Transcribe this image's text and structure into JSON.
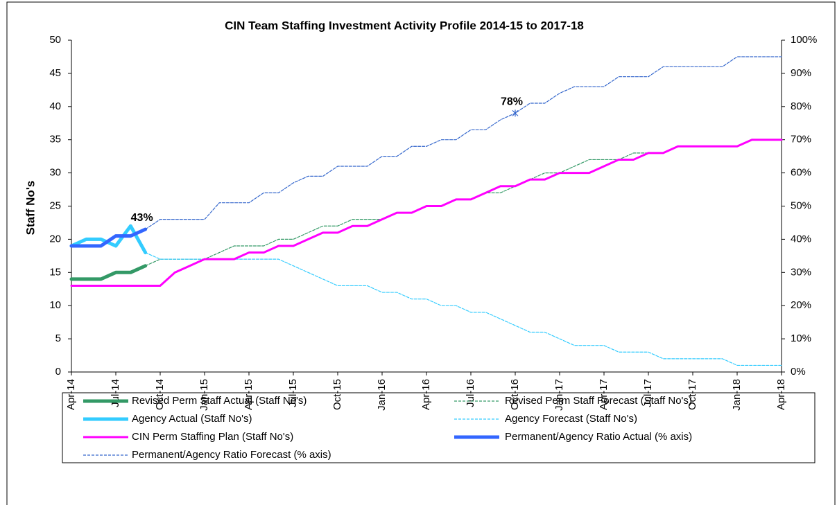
{
  "chart_data": {
    "type": "line",
    "title": "CIN Team Staffing Investment Activity Profile 2014-15 to 2017-18",
    "y_label": "Staff No's",
    "categories": [
      "Apr-14",
      null,
      null,
      "Jul-14",
      null,
      null,
      "Oct-14",
      null,
      null,
      "Jan-15",
      null,
      null,
      "Apr-15",
      null,
      null,
      "Jul-15",
      null,
      null,
      "Oct-15",
      null,
      null,
      "Jan-16",
      null,
      null,
      "Apr-16",
      null,
      null,
      "Jul-16",
      null,
      null,
      "Oct-16",
      null,
      null,
      "Jan-17",
      null,
      null,
      "Apr-17",
      null,
      null,
      "Jul-17",
      null,
      null,
      "Oct-17",
      null,
      null,
      "Jan-18",
      null,
      null,
      "Apr-18"
    ],
    "ylim": [
      0,
      50
    ],
    "yticks": [
      0,
      5,
      10,
      15,
      20,
      25,
      30,
      35,
      40,
      45,
      50
    ],
    "y2lim": [
      0,
      100
    ],
    "y2ticks": [
      {
        "value": 0,
        "label": "0%"
      },
      {
        "value": 10,
        "label": "10%"
      },
      {
        "value": 20,
        "label": "20%"
      },
      {
        "value": 30,
        "label": "30%"
      },
      {
        "value": 40,
        "label": "40%"
      },
      {
        "value": 50,
        "label": "50%"
      },
      {
        "value": 60,
        "label": "60%"
      },
      {
        "value": 70,
        "label": "70%"
      },
      {
        "value": 80,
        "label": "80%"
      },
      {
        "value": 90,
        "label": "90%"
      },
      {
        "value": 100,
        "label": "100%"
      }
    ],
    "grid": false,
    "legend": "bottom",
    "series": [
      {
        "name": "Revised Perm Staff Actual (Staff No's)",
        "color": "#339966",
        "line_style": "thick",
        "values": [
          14,
          14,
          14,
          15,
          15,
          16,
          null,
          null,
          null,
          null,
          null,
          null,
          null,
          null,
          null,
          null,
          null,
          null,
          null,
          null,
          null,
          null,
          null,
          null,
          null,
          null,
          null,
          null,
          null,
          null,
          null,
          null,
          null,
          null,
          null,
          null,
          null,
          null,
          null,
          null,
          null,
          null,
          null,
          null,
          null,
          null,
          null,
          null,
          null
        ]
      },
      {
        "name": "Revised Perm Staff Forecast (Staff No's)",
        "color": "#339966",
        "line_style": "dashed",
        "values": [
          null,
          null,
          null,
          null,
          null,
          16,
          17,
          17,
          17,
          17,
          18,
          19,
          19,
          19,
          20,
          20,
          21,
          22,
          22,
          23,
          23,
          23,
          24,
          24,
          25,
          25,
          26,
          26,
          27,
          27,
          28,
          29,
          30,
          30,
          31,
          32,
          32,
          32,
          33,
          33,
          33,
          34,
          34,
          34,
          34,
          34,
          35,
          35,
          35
        ]
      },
      {
        "name": "Agency Actual (Staff No's)",
        "color": "#33ccff",
        "line_style": "thick",
        "values": [
          19,
          20,
          20,
          19,
          22,
          18,
          null,
          null,
          null,
          null,
          null,
          null,
          null,
          null,
          null,
          null,
          null,
          null,
          null,
          null,
          null,
          null,
          null,
          null,
          null,
          null,
          null,
          null,
          null,
          null,
          null,
          null,
          null,
          null,
          null,
          null,
          null,
          null,
          null,
          null,
          null,
          null,
          null,
          null,
          null,
          null,
          null,
          null,
          null
        ]
      },
      {
        "name": "Agency Forecast (Staff No's)",
        "color": "#33ccff",
        "line_style": "dashed",
        "values": [
          null,
          null,
          null,
          null,
          null,
          18,
          17,
          17,
          17,
          17,
          17,
          17,
          17,
          17,
          17,
          16,
          15,
          14,
          13,
          13,
          13,
          12,
          12,
          11,
          11,
          10,
          10,
          9,
          9,
          8,
          7,
          6,
          6,
          5,
          4,
          4,
          4,
          3,
          3,
          3,
          2,
          2,
          2,
          2,
          2,
          1,
          1,
          1,
          1
        ]
      },
      {
        "name": "CIN Perm Staffing Plan (Staff No's)",
        "color": "#ff00ff",
        "line_style": "medium",
        "values": [
          13,
          13,
          13,
          13,
          13,
          13,
          13,
          15,
          16,
          17,
          17,
          17,
          18,
          18,
          19,
          19,
          20,
          21,
          21,
          22,
          22,
          23,
          24,
          24,
          25,
          25,
          26,
          26,
          27,
          28,
          28,
          29,
          29,
          30,
          30,
          30,
          31,
          32,
          32,
          33,
          33,
          34,
          34,
          34,
          34,
          34,
          35,
          35,
          35
        ]
      },
      {
        "name": "Permanent/Agency Ratio Actual (% axis)",
        "color": "#3366ff",
        "line_style": "thick",
        "axis": "y2",
        "values": [
          38,
          38,
          38,
          41,
          41,
          43,
          null,
          null,
          null,
          null,
          null,
          null,
          null,
          null,
          null,
          null,
          null,
          null,
          null,
          null,
          null,
          null,
          null,
          null,
          null,
          null,
          null,
          null,
          null,
          null,
          null,
          null,
          null,
          null,
          null,
          null,
          null,
          null,
          null,
          null,
          null,
          null,
          null,
          null,
          null,
          null,
          null,
          null,
          null
        ],
        "value_labels": [
          null,
          null,
          null,
          null,
          null,
          "43%",
          null,
          null,
          null,
          null,
          null,
          null,
          null,
          null,
          null,
          null,
          null,
          null,
          null,
          null,
          null,
          null,
          null,
          null,
          null,
          null,
          null,
          null,
          null,
          null,
          null,
          null,
          null,
          null,
          null,
          null,
          null,
          null,
          null,
          null,
          null,
          null,
          null,
          null,
          null,
          null,
          null,
          null,
          null
        ]
      },
      {
        "name": "Permanent/Agency Ratio Forecast (% axis)",
        "color": "#3366cc",
        "line_style": "dashed",
        "axis": "y2",
        "values": [
          null,
          null,
          null,
          null,
          null,
          43,
          46,
          46,
          46,
          46,
          51,
          51,
          51,
          54,
          54,
          57,
          59,
          59,
          62,
          62,
          62,
          65,
          65,
          68,
          68,
          70,
          70,
          73,
          73,
          76,
          78,
          81,
          81,
          84,
          86,
          86,
          86,
          89,
          89,
          89,
          92,
          92,
          92,
          92,
          92,
          95,
          95,
          95,
          95
        ],
        "value_labels": [
          null,
          null,
          null,
          null,
          null,
          null,
          null,
          null,
          null,
          null,
          null,
          null,
          null,
          null,
          null,
          null,
          null,
          null,
          null,
          null,
          null,
          null,
          null,
          null,
          null,
          null,
          null,
          null,
          null,
          null,
          "78%",
          null,
          null,
          null,
          null,
          null,
          null,
          null,
          null,
          null,
          null,
          null,
          null,
          null,
          null,
          null,
          null,
          null,
          null
        ]
      }
    ]
  }
}
